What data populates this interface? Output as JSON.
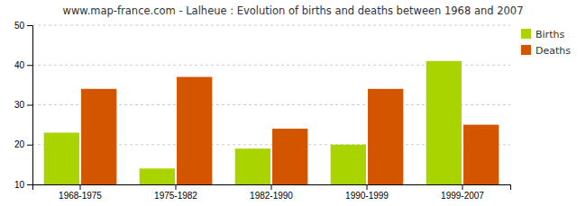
{
  "chart_data": {
    "type": "bar",
    "title": "www.map-france.com - Lalheue : Evolution of births and deaths between 1968 and 2007",
    "categories": [
      "1968-1975",
      "1975-1982",
      "1982-1990",
      "1990-1999",
      "1999-2007"
    ],
    "series": [
      {
        "name": "Births",
        "color": "#aad400",
        "values": [
          23,
          14,
          19,
          20,
          41
        ]
      },
      {
        "name": "Deaths",
        "color": "#d45500",
        "values": [
          34,
          37,
          24,
          34,
          25
        ]
      }
    ],
    "ylim": [
      10,
      50
    ],
    "yticks": [
      10,
      20,
      30,
      40,
      50
    ],
    "grid": true,
    "legend": "upper right"
  }
}
